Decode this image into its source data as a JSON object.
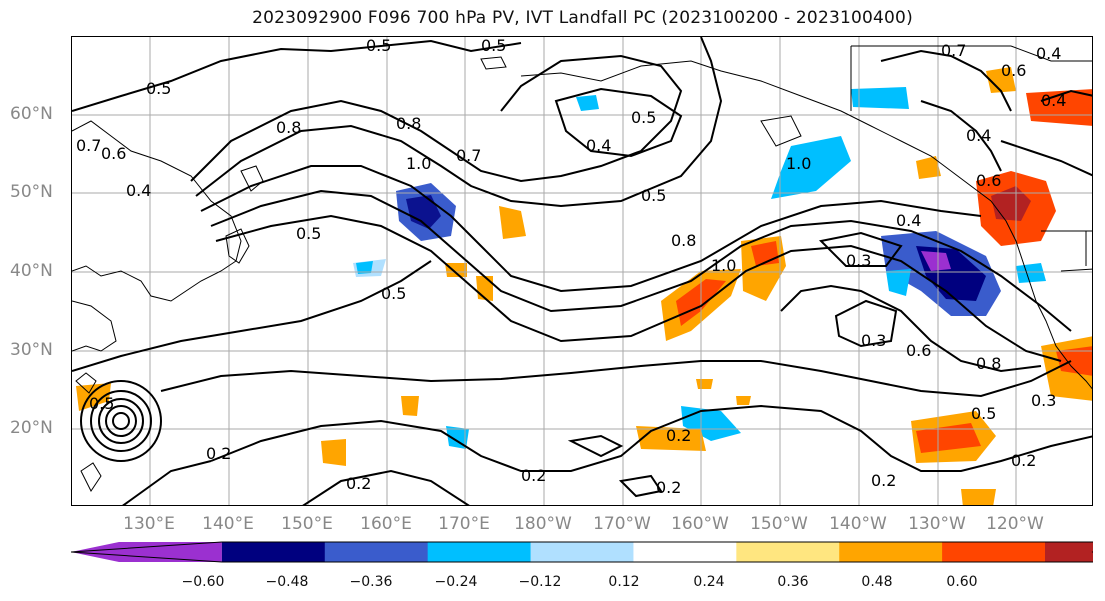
{
  "title": "2023092900 F096 700 hPa PV, IVT Landfall PC (2023100200 - 2023100400)",
  "lat_labels": [
    "60°N",
    "50°N",
    "40°N",
    "30°N",
    "20°N"
  ],
  "lon_labels": [
    "130°E",
    "140°E",
    "150°E",
    "160°E",
    "170°E",
    "180°W",
    "170°W",
    "160°W",
    "150°W",
    "140°W",
    "130°W",
    "120°W"
  ],
  "colorbar": {
    "ticks": [
      "−0.60",
      "−0.48",
      "−0.36",
      "−0.24",
      "−0.12",
      "0.12",
      "0.24",
      "0.36",
      "0.48",
      "0.60"
    ],
    "colors": [
      "#9b30d0",
      "#00007f",
      "#3a5ccc",
      "#00bfff",
      "#b0e0ff",
      "#ffffff",
      "#ffe680",
      "#ffa500",
      "#ff4500",
      "#b22222",
      "#ff88aa"
    ]
  },
  "contour_labels": [
    "0.5",
    "0.5",
    "0.5",
    "0.8",
    "0.7",
    "0.6",
    "0.4",
    "0.8",
    "0.5",
    "0.4",
    "0.5",
    "1.0",
    "0.7",
    "0.4",
    "0.5",
    "0.8",
    "1.0",
    "1.0",
    "0.5",
    "0.4",
    "0.3",
    "0.6",
    "0.4",
    "0.3",
    "0.6",
    "0.8",
    "0.5",
    "0.3",
    "0.2",
    "0.2",
    "0.2",
    "0.2",
    "0.2",
    "0.2",
    "0.2",
    "0.7",
    "0.6",
    "0.4",
    "0.5"
  ]
}
